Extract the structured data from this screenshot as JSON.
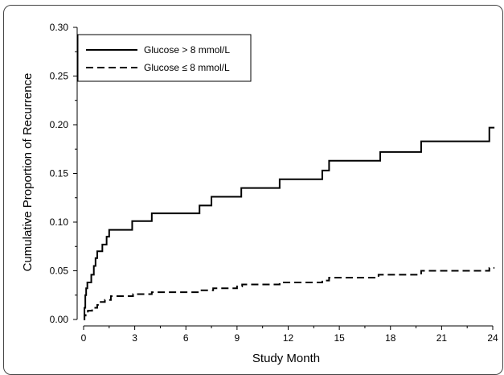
{
  "chart_data": {
    "type": "line",
    "title": "",
    "xlabel": "Study Month",
    "ylabel": "Cumulative Proportion of Recurrence",
    "xlim": [
      0,
      24
    ],
    "ylim": [
      0,
      0.3
    ],
    "x_ticks": [
      0,
      3,
      6,
      9,
      12,
      15,
      18,
      21,
      24
    ],
    "y_ticks": [
      "0.00",
      "0.05",
      "0.10",
      "0.15",
      "0.20",
      "0.25",
      "0.30"
    ],
    "legend_position": "top-left",
    "grid": false,
    "series": [
      {
        "name": "Glucose > 8 mmol/L",
        "style": "solid",
        "color": "#000000",
        "steps": [
          [
            0,
            0
          ],
          [
            0.05,
            0.012
          ],
          [
            0.1,
            0.025
          ],
          [
            0.15,
            0.032
          ],
          [
            0.22,
            0.038
          ],
          [
            0.45,
            0.046
          ],
          [
            0.6,
            0.055
          ],
          [
            0.7,
            0.063
          ],
          [
            0.8,
            0.07
          ],
          [
            1.1,
            0.077
          ],
          [
            1.35,
            0.085
          ],
          [
            1.5,
            0.092
          ],
          [
            2.85,
            0.101
          ],
          [
            4.0,
            0.109
          ],
          [
            6.8,
            0.117
          ],
          [
            7.5,
            0.126
          ],
          [
            9.25,
            0.135
          ],
          [
            11.5,
            0.144
          ],
          [
            14.0,
            0.153
          ],
          [
            14.4,
            0.163
          ],
          [
            17.4,
            0.172
          ],
          [
            19.8,
            0.183
          ],
          [
            23.8,
            0.197
          ],
          [
            24.1,
            0.197
          ]
        ]
      },
      {
        "name": "Glucose ≤ 8 mmol/L",
        "style": "dashed",
        "color": "#000000",
        "steps": [
          [
            0,
            0
          ],
          [
            0.05,
            0.004
          ],
          [
            0.12,
            0.007
          ],
          [
            0.25,
            0.009
          ],
          [
            0.5,
            0.012
          ],
          [
            0.8,
            0.015
          ],
          [
            1.0,
            0.018
          ],
          [
            1.25,
            0.02
          ],
          [
            1.6,
            0.024
          ],
          [
            2.9,
            0.026
          ],
          [
            4.0,
            0.028
          ],
          [
            6.8,
            0.03
          ],
          [
            7.6,
            0.032
          ],
          [
            9.0,
            0.034
          ],
          [
            9.3,
            0.036
          ],
          [
            11.5,
            0.038
          ],
          [
            14.0,
            0.04
          ],
          [
            14.4,
            0.043
          ],
          [
            17.3,
            0.046
          ],
          [
            19.8,
            0.05
          ],
          [
            23.8,
            0.053
          ],
          [
            24.1,
            0.053
          ]
        ]
      }
    ]
  }
}
